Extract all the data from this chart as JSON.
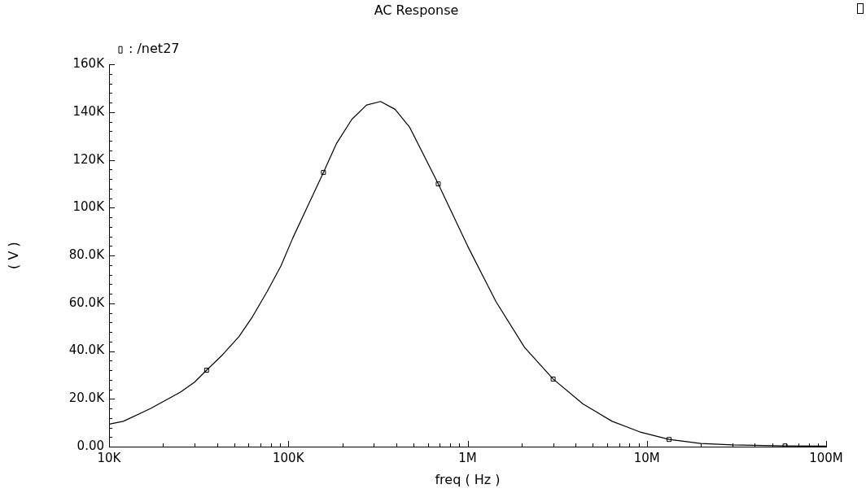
{
  "chart_data": {
    "type": "line",
    "title": "AC Response",
    "xlabel": "freq ( Hz )",
    "ylabel": "( V )",
    "log": "x",
    "legend": "top left",
    "grid": false,
    "xlim": [
      10000,
      100000000
    ],
    "xticks": [
      {
        "value": 10000,
        "label": "10K"
      },
      {
        "value": 20000,
        "label": null
      },
      {
        "value": 30000,
        "label": null
      },
      {
        "value": 40000,
        "label": null
      },
      {
        "value": 50000,
        "label": null
      },
      {
        "value": 60000,
        "label": null
      },
      {
        "value": 70000,
        "label": null
      },
      {
        "value": 80000,
        "label": null
      },
      {
        "value": 90000,
        "label": null
      },
      {
        "value": 100000,
        "label": "100K"
      },
      {
        "value": 200000,
        "label": null
      },
      {
        "value": 300000,
        "label": null
      },
      {
        "value": 400000,
        "label": null
      },
      {
        "value": 500000,
        "label": null
      },
      {
        "value": 600000,
        "label": null
      },
      {
        "value": 700000,
        "label": null
      },
      {
        "value": 800000,
        "label": null
      },
      {
        "value": 900000,
        "label": null
      },
      {
        "value": 1000000,
        "label": "1M"
      },
      {
        "value": 2000000,
        "label": null
      },
      {
        "value": 3000000,
        "label": null
      },
      {
        "value": 4000000,
        "label": null
      },
      {
        "value": 5000000,
        "label": null
      },
      {
        "value": 6000000,
        "label": null
      },
      {
        "value": 7000000,
        "label": null
      },
      {
        "value": 8000000,
        "label": null
      },
      {
        "value": 9000000,
        "label": null
      },
      {
        "value": 10000000,
        "label": "10M"
      },
      {
        "value": 20000000,
        "label": null
      },
      {
        "value": 30000000,
        "label": null
      },
      {
        "value": 40000000,
        "label": null
      },
      {
        "value": 50000000,
        "label": null
      },
      {
        "value": 60000000,
        "label": null
      },
      {
        "value": 70000000,
        "label": null
      },
      {
        "value": 80000000,
        "label": null
      },
      {
        "value": 90000000,
        "label": null
      },
      {
        "value": 100000000,
        "label": "100M"
      }
    ],
    "ylim": [
      0,
      160000
    ],
    "yticks": [
      {
        "value": 0,
        "label": "0.00"
      },
      {
        "value": 4000,
        "label": null
      },
      {
        "value": 8000,
        "label": null
      },
      {
        "value": 12000,
        "label": null
      },
      {
        "value": 16000,
        "label": null
      },
      {
        "value": 20000,
        "label": "20.0K"
      },
      {
        "value": 24000,
        "label": null
      },
      {
        "value": 28000,
        "label": null
      },
      {
        "value": 32000,
        "label": null
      },
      {
        "value": 36000,
        "label": null
      },
      {
        "value": 40000,
        "label": "40.0K"
      },
      {
        "value": 44000,
        "label": null
      },
      {
        "value": 48000,
        "label": null
      },
      {
        "value": 52000,
        "label": null
      },
      {
        "value": 56000,
        "label": null
      },
      {
        "value": 60000,
        "label": "60.0K"
      },
      {
        "value": 64000,
        "label": null
      },
      {
        "value": 68000,
        "label": null
      },
      {
        "value": 72000,
        "label": null
      },
      {
        "value": 76000,
        "label": null
      },
      {
        "value": 80000,
        "label": "80.0K"
      },
      {
        "value": 84000,
        "label": null
      },
      {
        "value": 88000,
        "label": null
      },
      {
        "value": 92000,
        "label": null
      },
      {
        "value": 96000,
        "label": null
      },
      {
        "value": 100000,
        "label": "100K"
      },
      {
        "value": 104000,
        "label": null
      },
      {
        "value": 108000,
        "label": null
      },
      {
        "value": 112000,
        "label": null
      },
      {
        "value": 116000,
        "label": null
      },
      {
        "value": 120000,
        "label": "120K"
      },
      {
        "value": 124000,
        "label": null
      },
      {
        "value": 128000,
        "label": null
      },
      {
        "value": 132000,
        "label": null
      },
      {
        "value": 136000,
        "label": null
      },
      {
        "value": 140000,
        "label": "140K"
      },
      {
        "value": 144000,
        "label": null
      },
      {
        "value": 148000,
        "label": null
      },
      {
        "value": 152000,
        "label": null
      },
      {
        "value": 156000,
        "label": null
      },
      {
        "value": 160000,
        "label": "160K"
      }
    ],
    "series": [
      {
        "name": ": /net27",
        "type": "line",
        "color": "#000000",
        "marker": "none",
        "x": [
          10000,
          12000,
          17000,
          20000,
          25000,
          30000,
          35000,
          43000,
          53000,
          63000,
          76000,
          91000,
          106000,
          157000,
          186000,
          226000,
          273000,
          327000,
          394000,
          476000,
          686000,
          1000000,
          1440000,
          2080000,
          3000000,
          4400000,
          6400000,
          9100000,
          13300000,
          20000000,
          30000000,
          59000000,
          100000000
        ],
        "values": [
          9400,
          10600,
          15900,
          18800,
          22800,
          27000,
          32000,
          38500,
          46000,
          54300,
          64800,
          75700,
          87400,
          114800,
          127000,
          137000,
          143000,
          144500,
          141200,
          133600,
          110000,
          84000,
          60700,
          41500,
          28300,
          17900,
          10600,
          6200,
          3000,
          1300,
          700,
          300,
          200
        ]
      },
      {
        "type": "scatter",
        "color": "#000000",
        "marker": "square",
        "x": [
          35000,
          157000,
          686000,
          3000000,
          13300000,
          59000000
        ],
        "values": [
          32000,
          114800,
          110000,
          28300,
          3000,
          300
        ]
      }
    ]
  }
}
